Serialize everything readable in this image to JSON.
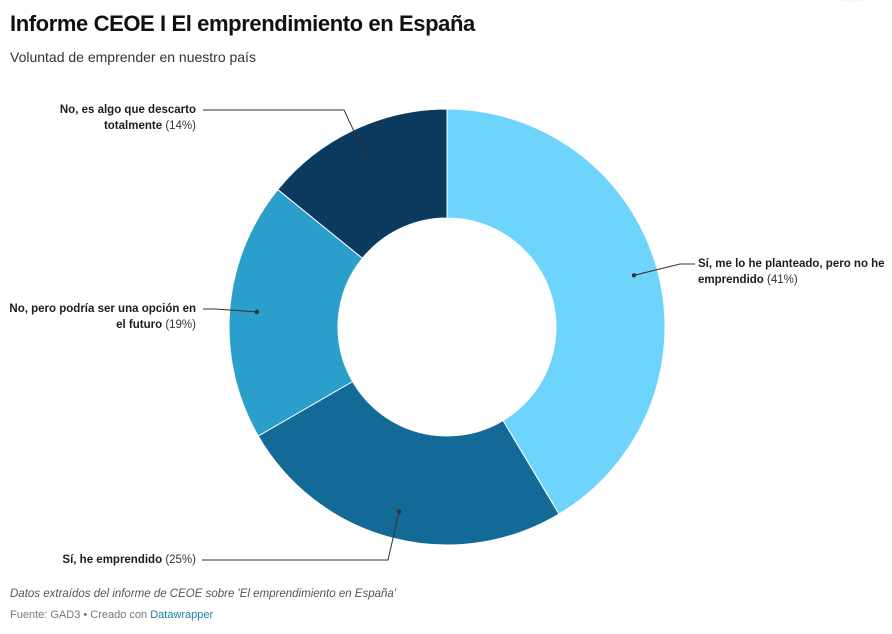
{
  "header": {
    "title": "Informe CEOE I El emprendimiento en España",
    "subtitle": "Voluntad de emprender en nuestro país"
  },
  "footer": {
    "notes": "Datos extraídos del informe de CEOE sobre 'El emprendimiento en España'",
    "source_prefix": "Fuente: GAD3 • Creado con ",
    "source_link": "Datawrapper"
  },
  "chart_data": {
    "type": "pie",
    "variant": "donut",
    "title": "Informe CEOE I El emprendimiento en España",
    "subtitle": "Voluntad de emprender en nuestro país",
    "unit": "%",
    "start": "top",
    "direction": "clockwise",
    "slices": [
      {
        "label": "Sí, me lo he planteado, pero no he emprendido",
        "value": 41,
        "pct_label": "(41%)",
        "color": "#6fd4fc"
      },
      {
        "label": "Sí, he emprendido",
        "value": 25,
        "pct_label": "(25%)",
        "color": "#136a96"
      },
      {
        "label": "No, pero podría ser una opción en el futuro",
        "value": 19,
        "pct_label": "(19%)",
        "color": "#2a9fcb"
      },
      {
        "label": "No, es algo que descarto totalmente",
        "value": 14,
        "pct_label": "(14%)",
        "color": "#0b3a5e"
      }
    ],
    "label_lines": [
      [
        "Sí, me lo he planteado, pero no he",
        "emprendido"
      ],
      [
        "Sí, he emprendido"
      ],
      [
        "No, pero podría ser una opción en",
        "el futuro"
      ],
      [
        "No, es algo que descarto",
        "totalmente"
      ]
    ]
  }
}
